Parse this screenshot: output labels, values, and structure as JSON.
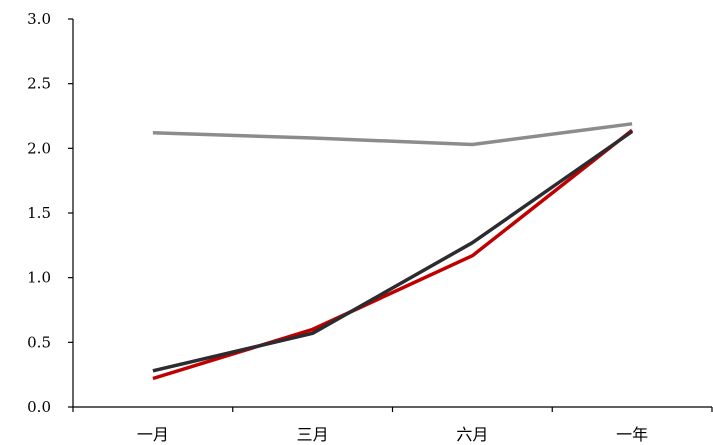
{
  "chart_data": {
    "type": "line",
    "title": "",
    "xlabel": "",
    "ylabel": "",
    "categories": [
      "一月",
      "三月",
      "六月",
      "一年"
    ],
    "ylim": [
      0,
      3.0
    ],
    "yticks": [
      "0.0",
      "0.5",
      "1.0",
      "1.5",
      "2.0",
      "2.5",
      "3.0"
    ],
    "grid": false,
    "legend": "none",
    "series": [
      {
        "color": "#8c8c8c",
        "values": [
          2.12,
          2.08,
          2.03,
          2.19
        ]
      },
      {
        "color": "#c00000",
        "values": [
          0.22,
          0.6,
          1.17,
          2.14
        ]
      },
      {
        "color": "#2b2b30",
        "values": [
          0.28,
          0.57,
          1.27,
          2.13
        ]
      }
    ]
  }
}
